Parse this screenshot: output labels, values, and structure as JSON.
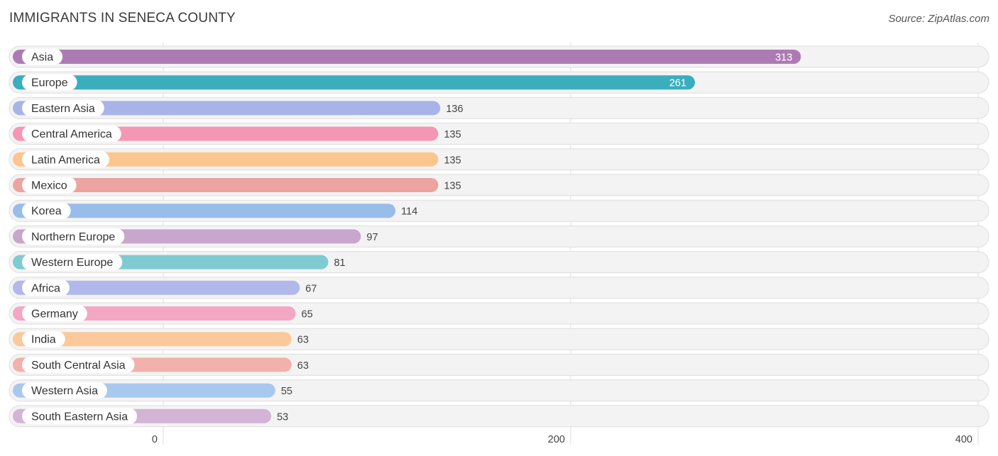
{
  "header": {
    "title": "IMMIGRANTS IN SENECA COUNTY",
    "source": "Source: ZipAtlas.com"
  },
  "chart_data": {
    "type": "bar",
    "orientation": "horizontal",
    "title": "IMMIGRANTS IN SENECA COUNTY",
    "xlim": [
      0,
      400
    ],
    "xticks": [
      0,
      200,
      400
    ],
    "grid": true,
    "categories": [
      "Asia",
      "Europe",
      "Eastern Asia",
      "Central America",
      "Latin America",
      "Mexico",
      "Korea",
      "Northern Europe",
      "Western Europe",
      "Africa",
      "Germany",
      "India",
      "South Central Asia",
      "Western Asia",
      "South Eastern Asia"
    ],
    "values": [
      313,
      261,
      136,
      135,
      135,
      135,
      114,
      97,
      81,
      67,
      65,
      63,
      63,
      55,
      53
    ],
    "colors": [
      "#ad7bb4",
      "#3aaebd",
      "#a8b4e8",
      "#f596b4",
      "#fbc68e",
      "#eda39f",
      "#98bde9",
      "#c9a6cd",
      "#7ecbd2",
      "#b1b8ea",
      "#f4a7c3",
      "#fbc99a",
      "#f2b1aa",
      "#a9c8ee",
      "#d3b3d6"
    ],
    "value_label_inside": [
      true,
      true,
      false,
      false,
      false,
      false,
      false,
      false,
      false,
      false,
      false,
      false,
      false,
      false,
      false
    ]
  }
}
